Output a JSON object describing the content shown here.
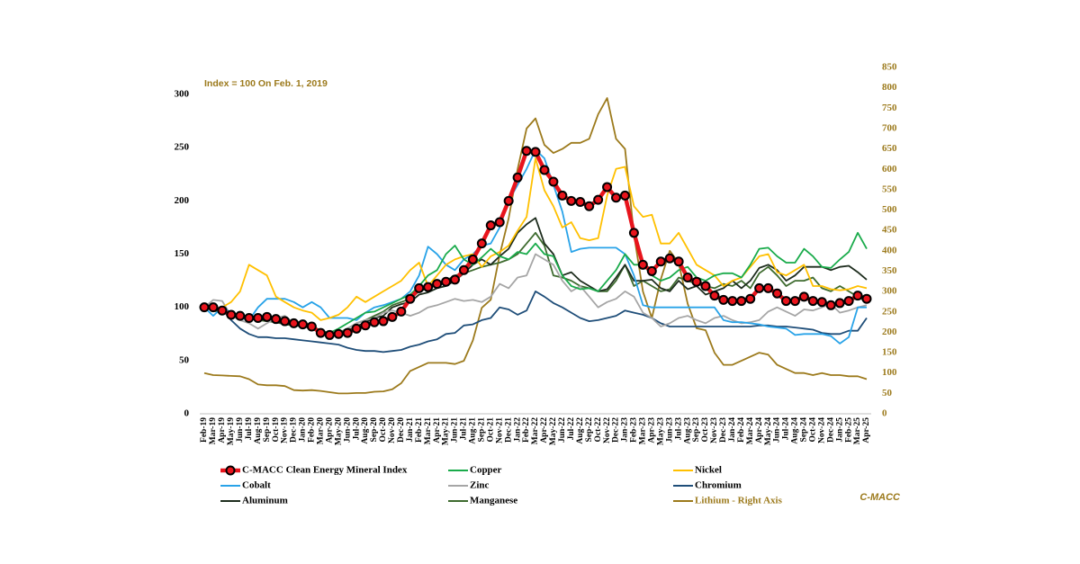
{
  "chart_data": {
    "type": "line",
    "annotations": [
      "Index = 100 On Feb. 1, 2019",
      "C-MACC"
    ],
    "categories": [
      "Feb-19",
      "Mar-19",
      "Apr-19",
      "May-19",
      "Jun-19",
      "Jul-19",
      "Aug-19",
      "Sep-19",
      "Oct-19",
      "Nov-19",
      "Dec-19",
      "Jan-20",
      "Feb-20",
      "Mar-20",
      "Apr-20",
      "May-20",
      "Jun-20",
      "Jul-20",
      "Aug-20",
      "Sep-20",
      "Oct-20",
      "Nov-20",
      "Dec-20",
      "Jan-21",
      "Feb-21",
      "Mar-21",
      "Apr-21",
      "May-21",
      "Jun-21",
      "Jul-21",
      "Aug-21",
      "Sep-21",
      "Oct-21",
      "Nov-21",
      "Dec-21",
      "Jan-22",
      "Feb-22",
      "Mar-22",
      "Apr-22",
      "May-22",
      "Jun-22",
      "Jul-22",
      "Aug-22",
      "Sep-22",
      "Oct-22",
      "Nov-22",
      "Dec-22",
      "Jan-23",
      "Feb-23",
      "Mar-23",
      "Apr-23",
      "May-23",
      "Jun-23",
      "Jul-23",
      "Aug-23",
      "Sep-23",
      "Oct-23",
      "Nov-23",
      "Dec-23",
      "Jan-24",
      "Feb-24",
      "Mar-24",
      "Apr-24",
      "May-24",
      "Jun-24",
      "Jul-24",
      "Aug-24",
      "Sep-24",
      "Oct-24",
      "Nov-24",
      "Dec-24",
      "Jan-25",
      "Feb-25",
      "Mar-25",
      "Apr-25"
    ],
    "ylim": [
      0,
      300
    ],
    "yticks": [
      0,
      50,
      100,
      150,
      200,
      250,
      300
    ],
    "y2lim": [
      0,
      850
    ],
    "y2ticks": [
      0,
      50,
      100,
      150,
      200,
      250,
      300,
      350,
      400,
      450,
      500,
      550,
      600,
      650,
      700,
      750,
      800,
      850
    ],
    "y2color": "#9c7a1c",
    "series": [
      {
        "name": "C-MACC Clean Energy Mineral Index",
        "color": "#e8141c",
        "marker": true,
        "values": [
          100,
          100,
          97,
          93,
          92,
          90,
          90,
          91,
          89,
          87,
          85,
          84,
          82,
          76,
          74,
          75,
          76,
          80,
          83,
          86,
          87,
          91,
          96,
          108,
          118,
          119,
          122,
          124,
          126,
          135,
          145,
          160,
          177,
          180,
          200,
          222,
          247,
          246,
          229,
          218,
          205,
          200,
          199,
          195,
          201,
          213,
          203,
          205,
          170,
          140,
          134,
          143,
          146,
          143,
          128,
          124,
          120,
          111,
          107,
          106,
          106,
          108,
          118,
          118,
          113,
          106,
          106,
          110,
          106,
          105,
          102,
          104,
          106,
          111,
          108
        ]
      },
      {
        "name": "Copper",
        "color": "#1aab4b",
        "values": [
          100,
          98,
          96,
          92,
          90,
          90,
          89,
          90,
          88,
          87,
          86,
          86,
          83,
          78,
          76,
          80,
          85,
          90,
          95,
          96,
          100,
          104,
          108,
          112,
          120,
          130,
          135,
          150,
          158,
          145,
          140,
          147,
          155,
          148,
          145,
          152,
          150,
          160,
          150,
          148,
          130,
          120,
          117,
          118,
          115,
          125,
          135,
          150,
          140,
          140,
          130,
          125,
          128,
          135,
          138,
          128,
          125,
          130,
          132,
          132,
          128,
          140,
          155,
          156,
          148,
          142,
          142,
          155,
          148,
          138,
          137,
          145,
          152,
          170,
          155
        ]
      },
      {
        "name": "Nickel",
        "color": "#ffc000",
        "values": [
          100,
          98,
          100,
          105,
          115,
          140,
          135,
          130,
          110,
          105,
          100,
          97,
          95,
          88,
          90,
          93,
          100,
          110,
          105,
          110,
          115,
          120,
          125,
          135,
          142,
          120,
          130,
          140,
          145,
          148,
          150,
          138,
          148,
          152,
          158,
          172,
          185,
          240,
          210,
          195,
          175,
          180,
          165,
          163,
          165,
          205,
          230,
          232,
          195,
          185,
          187,
          160,
          160,
          170,
          155,
          140,
          135,
          130,
          120,
          125,
          128,
          138,
          148,
          150,
          133,
          130,
          135,
          140,
          120,
          120,
          117,
          116,
          117,
          120,
          118
        ]
      },
      {
        "name": "Cobalt",
        "color": "#29a3e8",
        "values": [
          100,
          92,
          100,
          95,
          90,
          88,
          100,
          108,
          108,
          108,
          105,
          100,
          105,
          100,
          90,
          90,
          90,
          88,
          95,
          100,
          102,
          105,
          108,
          115,
          130,
          157,
          150,
          140,
          135,
          145,
          150,
          158,
          160,
          175,
          200,
          215,
          230,
          248,
          240,
          215,
          190,
          152,
          155,
          156,
          156,
          156,
          156,
          150,
          130,
          102,
          100,
          100,
          100,
          100,
          100,
          100,
          100,
          100,
          88,
          86,
          86,
          85,
          84,
          82,
          81,
          80,
          74,
          75,
          75,
          75,
          73,
          66,
          72,
          100,
          100
        ]
      },
      {
        "name": "Zinc",
        "color": "#a6a6a6",
        "values": [
          100,
          107,
          106,
          92,
          88,
          85,
          80,
          85,
          90,
          92,
          85,
          82,
          80,
          76,
          72,
          75,
          80,
          85,
          88,
          90,
          95,
          97,
          95,
          92,
          95,
          100,
          102,
          105,
          108,
          106,
          107,
          105,
          110,
          122,
          118,
          128,
          130,
          150,
          145,
          140,
          125,
          115,
          120,
          110,
          100,
          105,
          108,
          115,
          110,
          95,
          90,
          82,
          85,
          90,
          92,
          88,
          85,
          90,
          92,
          88,
          85,
          86,
          88,
          96,
          100,
          96,
          92,
          98,
          97,
          100,
          103,
          95,
          97,
          100,
          102
        ]
      },
      {
        "name": "Chromium",
        "color": "#1f4e79",
        "values": [
          100,
          100,
          98,
          88,
          80,
          75,
          72,
          72,
          71,
          71,
          70,
          69,
          68,
          67,
          66,
          65,
          62,
          60,
          59,
          59,
          58,
          59,
          60,
          63,
          65,
          68,
          70,
          75,
          76,
          83,
          84,
          88,
          90,
          100,
          98,
          93,
          97,
          115,
          110,
          104,
          100,
          95,
          90,
          87,
          88,
          90,
          92,
          97,
          95,
          93,
          90,
          85,
          82,
          82,
          82,
          82,
          82,
          82,
          82,
          82,
          82,
          82,
          83,
          83,
          82,
          82,
          81,
          80,
          79,
          76,
          75,
          75,
          78,
          78,
          90
        ]
      },
      {
        "name": "Aluminum",
        "color": "#1e2d1e",
        "values": [
          100,
          98,
          96,
          94,
          92,
          90,
          89,
          88,
          86,
          85,
          84,
          82,
          80,
          76,
          74,
          75,
          78,
          82,
          86,
          90,
          92,
          100,
          103,
          105,
          112,
          114,
          118,
          120,
          125,
          132,
          140,
          145,
          140,
          148,
          155,
          170,
          178,
          184,
          160,
          150,
          130,
          133,
          125,
          120,
          115,
          117,
          128,
          140,
          125,
          125,
          126,
          118,
          115,
          125,
          117,
          120,
          112,
          115,
          118,
          125,
          118,
          125,
          137,
          140,
          135,
          125,
          130,
          138,
          138,
          138,
          135,
          138,
          139,
          133,
          126
        ]
      },
      {
        "name": "Manganese",
        "color": "#3e6b2f",
        "values": [
          100,
          97,
          95,
          93,
          91,
          90,
          88,
          87,
          86,
          84,
          83,
          82,
          80,
          77,
          75,
          76,
          80,
          85,
          88,
          92,
          96,
          102,
          105,
          108,
          115,
          118,
          122,
          125,
          130,
          132,
          135,
          138,
          140,
          142,
          145,
          150,
          160,
          170,
          158,
          130,
          128,
          125,
          120,
          118,
          115,
          115,
          125,
          140,
          120,
          125,
          120,
          115,
          117,
          128,
          125,
          122,
          120,
          118,
          122,
          120,
          125,
          118,
          132,
          138,
          130,
          120,
          125,
          125,
          128,
          118,
          115,
          120,
          115,
          110,
          105
        ]
      },
      {
        "name": "Lithium - Right Axis",
        "color": "#9c7a1c",
        "axis": "y2",
        "values": [
          100,
          95,
          94,
          93,
          92,
          85,
          72,
          70,
          70,
          68,
          58,
          57,
          58,
          56,
          53,
          50,
          50,
          51,
          51,
          54,
          55,
          60,
          75,
          105,
          115,
          125,
          125,
          125,
          122,
          130,
          180,
          260,
          280,
          390,
          480,
          600,
          700,
          725,
          660,
          640,
          650,
          665,
          665,
          675,
          735,
          775,
          675,
          650,
          440,
          300,
          235,
          330,
          400,
          370,
          270,
          210,
          205,
          150,
          120,
          120,
          130,
          140,
          150,
          145,
          120,
          110,
          100,
          100,
          95,
          100,
          95,
          95,
          92,
          92,
          85
        ]
      }
    ]
  }
}
